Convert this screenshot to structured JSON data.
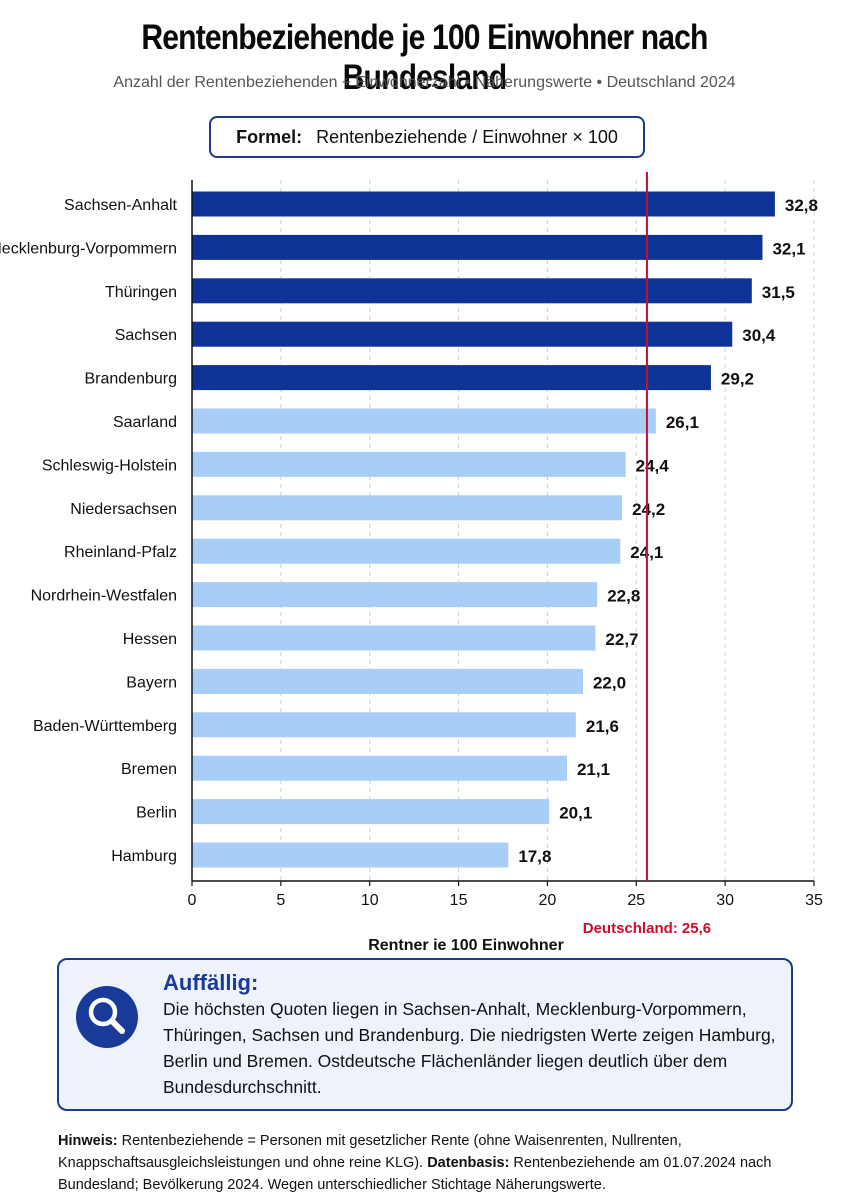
{
  "header": {
    "title": "Rentenbeziehende je 100 Einwohner nach Bundesland",
    "subtitle": "Anzahl der Rentenbeziehenden ÷ Einwohnerzahl • Näherungswerte • Deutschland 2024"
  },
  "formula": {
    "label": "Formel:",
    "text": "Rentenbeziehende / Einwohner × 100"
  },
  "chart_data": {
    "type": "bar",
    "orientation": "horizontal",
    "categories": [
      "Sachsen-Anhalt",
      "Mecklenburg-Vorpommern",
      "Thüringen",
      "Sachsen",
      "Brandenburg",
      "Saarland",
      "Schleswig-Holstein",
      "Niedersachsen",
      "Rheinland-Pfalz",
      "Nordrhein-Westfalen",
      "Hessen",
      "Bayern",
      "Baden-Württemberg",
      "Bremen",
      "Berlin",
      "Hamburg"
    ],
    "values": [
      32.8,
      32.1,
      31.5,
      30.4,
      29.2,
      26.1,
      24.4,
      24.2,
      24.1,
      22.8,
      22.7,
      22.0,
      21.6,
      21.1,
      20.1,
      17.8
    ],
    "value_labels": [
      "32,8",
      "32,1",
      "31,5",
      "30,4",
      "29,2",
      "26,1",
      "24,4",
      "24,2",
      "24,1",
      "22,8",
      "22,7",
      "22,0",
      "21,6",
      "21,1",
      "20,1",
      "17,8"
    ],
    "highlight_count": 5,
    "xlabel": "Rentner je 100 Einwohner",
    "xlim": [
      0,
      35
    ],
    "xticks": [
      0,
      5,
      10,
      15,
      20,
      25,
      30,
      35
    ],
    "grid": "vertical dashed",
    "reference_line": {
      "value": 25.6,
      "label": "Deutschland: 25,6",
      "color": "#c8102e"
    },
    "colors": {
      "highlight": "#0d3399",
      "normal": "#a8cdf7"
    }
  },
  "callout": {
    "icon": "magnifier-icon",
    "heading": "Auffällig:",
    "text": "Die höchsten Quoten liegen in Sachsen-Anhalt, Mecklenburg-Vorpommern, Thüringen, Sachsen und Brandenburg. Die niedrigsten Werte zeigen Hamburg, Berlin und Bremen. Ostdeutsche Flächenländer liegen deutlich über dem Bundesdurchschnitt."
  },
  "note": {
    "hinweis_label": "Hinweis:",
    "hinweis_text": " Rentenbeziehende = Personen mit gesetzlicher Rente (ohne Waisenrenten, Nullrenten, Knappschaftsausgleichsleistungen und ohne reine KLG). ",
    "datenbasis_label": "Datenbasis:",
    "datenbasis_text": " Rentenbeziehende am 01.07.2024 nach Bundesland; Bevölkerung 2024. Wegen unterschiedlicher Stichtage Näherungswerte."
  }
}
